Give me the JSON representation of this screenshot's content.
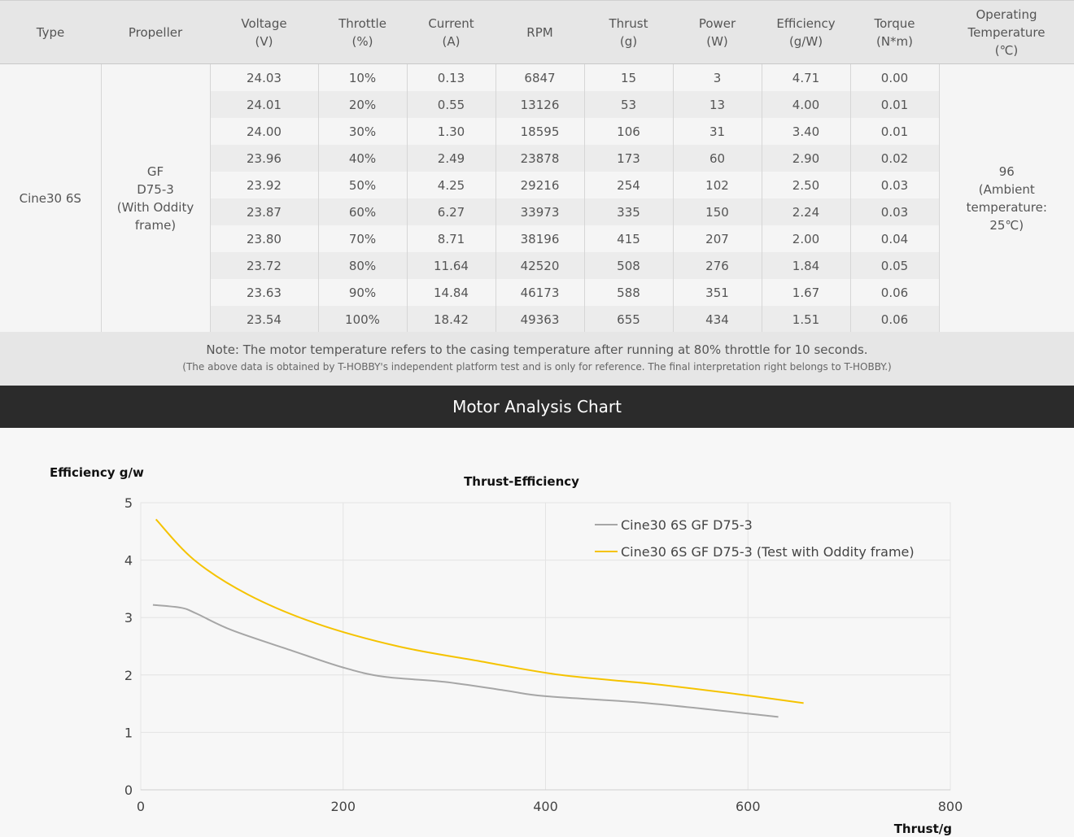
{
  "table": {
    "headers": [
      {
        "line1": "Type",
        "line2": "",
        "line3": ""
      },
      {
        "line1": "Propeller",
        "line2": "",
        "line3": ""
      },
      {
        "line1": "Voltage",
        "line2": "(V)",
        "line3": ""
      },
      {
        "line1": "Throttle",
        "line2": "(%)",
        "line3": ""
      },
      {
        "line1": "Current",
        "line2": "(A)",
        "line3": ""
      },
      {
        "line1": "RPM",
        "line2": "",
        "line3": ""
      },
      {
        "line1": "Thrust",
        "line2": "(g)",
        "line3": ""
      },
      {
        "line1": "Power",
        "line2": "(W)",
        "line3": ""
      },
      {
        "line1": "Efficiency",
        "line2": "(g/W)",
        "line3": ""
      },
      {
        "line1": "Torque",
        "line2": "(N*m)",
        "line3": ""
      },
      {
        "line1": "Operating",
        "line2": "Temperature",
        "line3": "(℃)"
      }
    ],
    "type": "Cine30 6S",
    "propeller": [
      "GF",
      "D75-3",
      "(With Oddity",
      "frame)"
    ],
    "temperature": [
      "96",
      "(Ambient",
      "temperature:",
      "25℃)"
    ],
    "rows": [
      [
        "24.03",
        "10%",
        "0.13",
        "6847",
        "15",
        "3",
        "4.71",
        "0.00"
      ],
      [
        "24.01",
        "20%",
        "0.55",
        "13126",
        "53",
        "13",
        "4.00",
        "0.01"
      ],
      [
        "24.00",
        "30%",
        "1.30",
        "18595",
        "106",
        "31",
        "3.40",
        "0.01"
      ],
      [
        "23.96",
        "40%",
        "2.49",
        "23878",
        "173",
        "60",
        "2.90",
        "0.02"
      ],
      [
        "23.92",
        "50%",
        "4.25",
        "29216",
        "254",
        "102",
        "2.50",
        "0.03"
      ],
      [
        "23.87",
        "60%",
        "6.27",
        "33973",
        "335",
        "150",
        "2.24",
        "0.03"
      ],
      [
        "23.80",
        "70%",
        "8.71",
        "38196",
        "415",
        "207",
        "2.00",
        "0.04"
      ],
      [
        "23.72",
        "80%",
        "11.64",
        "42520",
        "508",
        "276",
        "1.84",
        "0.05"
      ],
      [
        "23.63",
        "90%",
        "14.84",
        "46173",
        "588",
        "351",
        "1.67",
        "0.06"
      ],
      [
        "23.54",
        "100%",
        "18.42",
        "49363",
        "655",
        "434",
        "1.51",
        "0.06"
      ]
    ]
  },
  "note": {
    "main": "Note: The motor temperature refers to the casing temperature after running at 80% throttle for 10 seconds.",
    "disclaimer": "(The above data is obtained by T-HOBBY's independent platform test and is only for reference. The final interpretation right belongs to T-HOBBY.)"
  },
  "banner": {
    "title": "Motor Analysis Chart"
  },
  "colors": {
    "gray_series": "#a6a6a6",
    "yellow_series": "#f5c300",
    "grid": "#e4e4e4"
  },
  "chart_data": {
    "type": "line",
    "title": "Thrust-Efficiency",
    "xlabel": "Thrust/g",
    "ylabel": "Efficiency g/w",
    "xlim": [
      0,
      800
    ],
    "ylim": [
      0,
      5
    ],
    "xticks": [
      0,
      200,
      400,
      600,
      800
    ],
    "yticks": [
      0,
      1,
      2,
      3,
      4,
      5
    ],
    "grid": true,
    "legend_position": "top-right",
    "series": [
      {
        "name": "Cine30 6S GF  D75-3",
        "color": "#a6a6a6",
        "x": [
          12,
          40,
          55,
          90,
          150,
          200,
          240,
          300,
          360,
          400,
          500,
          630
        ],
        "y": [
          3.22,
          3.17,
          3.07,
          2.78,
          2.42,
          2.13,
          1.97,
          1.88,
          1.73,
          1.63,
          1.51,
          1.27
        ]
      },
      {
        "name": "Cine30 6S GF D75-3   (Test with Oddity frame)",
        "color": "#f5c300",
        "x": [
          15,
          53,
          106,
          173,
          254,
          335,
          415,
          508,
          588,
          655
        ],
        "y": [
          4.71,
          4.0,
          3.4,
          2.9,
          2.5,
          2.24,
          2.0,
          1.84,
          1.67,
          1.51
        ]
      }
    ]
  }
}
